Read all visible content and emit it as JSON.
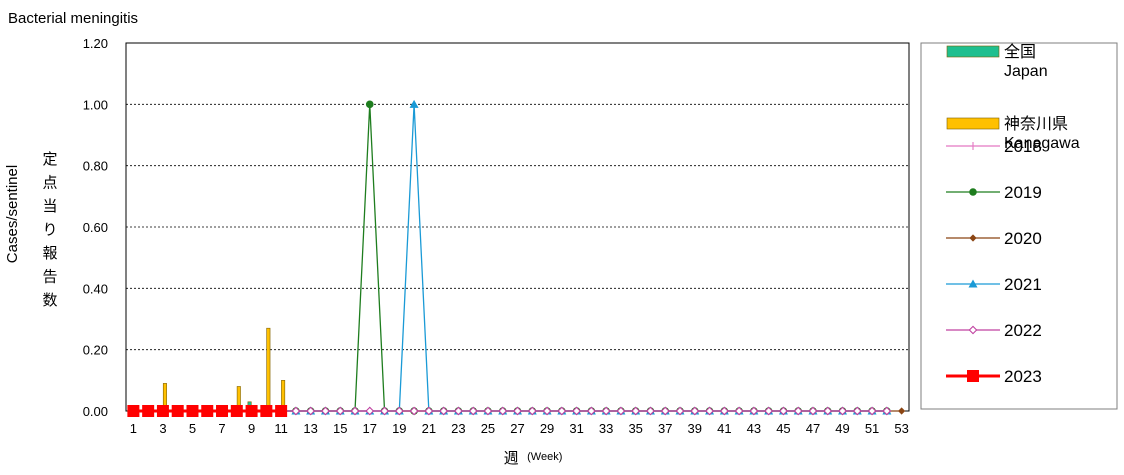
{
  "chart_data": {
    "type": "bar+line",
    "title": "Bacterial meningitis",
    "ylabel_en": "Cases/sentinel",
    "ylabel_jp": "定点当り報告数",
    "xlabel_jp": "週",
    "xlabel_en": "(Week)",
    "ylim": [
      0,
      1.2
    ],
    "yticks": [
      "0.00",
      "0.20",
      "0.40",
      "0.60",
      "0.80",
      "1.00",
      "1.20"
    ],
    "xtick_labels": [
      "1",
      "3",
      "5",
      "7",
      "9",
      "11",
      "13",
      "15",
      "17",
      "19",
      "21",
      "23",
      "25",
      "27",
      "29",
      "31",
      "33",
      "35",
      "37",
      "39",
      "41",
      "43",
      "45",
      "47",
      "49",
      "51",
      "53"
    ],
    "grid": true,
    "legend_position": "right",
    "bar_series": [
      {
        "name": "全国 Japan",
        "label_lines": [
          "全国",
          "Japan"
        ],
        "color": "#1fbf8f",
        "values": {
          "9": 0.03
        }
      },
      {
        "name": "神奈川県 Kanagawa",
        "label_lines": [
          "神奈川県",
          "Kanagawa"
        ],
        "color": "#ffc000",
        "values": {
          "3": 0.09,
          "8": 0.08,
          "10": 0.27,
          "11": 0.1
        }
      }
    ],
    "line_series": [
      {
        "name": "2018",
        "color": "#e377c2",
        "marker": "plus",
        "first_week": 1,
        "last_week": 52,
        "values": {}
      },
      {
        "name": "2019",
        "color": "#1e7d1e",
        "marker": "circle",
        "first_week": 1,
        "last_week": 52,
        "values": {
          "17": 1.0
        }
      },
      {
        "name": "2020",
        "color": "#8b4513",
        "marker": "diamond",
        "first_week": 1,
        "last_week": 53,
        "values": {}
      },
      {
        "name": "2021",
        "color": "#1a9ad6",
        "marker": "triangle",
        "first_week": 1,
        "last_week": 52,
        "values": {
          "20": 1.0
        }
      },
      {
        "name": "2022",
        "color": "#c040a0",
        "marker": "open-diamond",
        "first_week": 1,
        "last_week": 52,
        "values": {}
      },
      {
        "name": "2023",
        "color": "#ff0000",
        "marker": "square",
        "first_week": 1,
        "last_week": 11,
        "values": {}
      }
    ]
  }
}
